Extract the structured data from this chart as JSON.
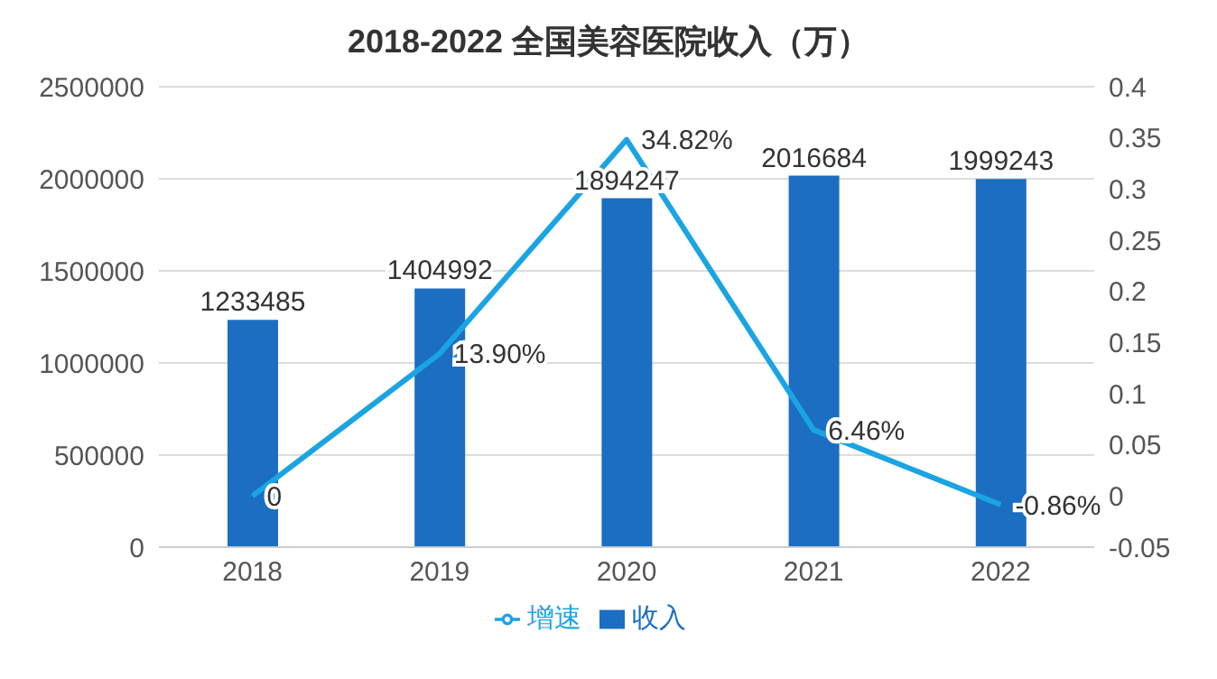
{
  "chart_data": {
    "type": "bar",
    "title": "2018-2022 全国美容医院收入（万）",
    "categories": [
      "2018",
      "2019",
      "2020",
      "2021",
      "2022"
    ],
    "series": [
      {
        "name": "收入",
        "color": "#1b6ec2",
        "values": [
          1233485,
          1404992,
          1894247,
          2016684,
          1999243
        ],
        "value_labels": [
          "1233485",
          "1404992",
          "1894247",
          "2016684",
          "1999243"
        ]
      },
      {
        "name": "增速",
        "type": "line",
        "axis": "y2",
        "color": "#1ba4e3",
        "values": [
          0,
          0.139,
          0.3482,
          0.0646,
          -0.0086
        ],
        "value_labels": [
          "0",
          "13.90%",
          "34.82%",
          "6.46%",
          "-0.86%"
        ]
      }
    ],
    "ylim": [
      0,
      2500000
    ],
    "yticks": [
      0,
      500000,
      1000000,
      1500000,
      2000000,
      2500000
    ],
    "y2lim": [
      -0.05,
      0.4
    ],
    "y2ticks": [
      -0.05,
      0,
      0.05,
      0.1,
      0.15,
      0.2,
      0.25,
      0.3,
      0.35,
      0.4
    ],
    "grid": "y",
    "legend": "bottom",
    "marker": "none"
  }
}
